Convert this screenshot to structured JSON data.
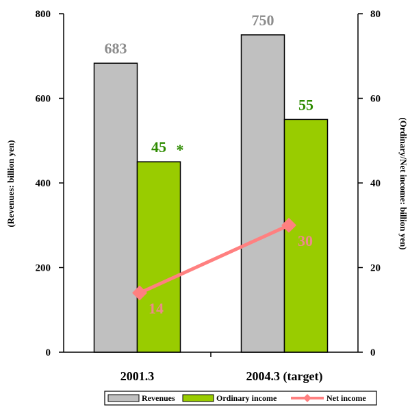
{
  "chart_data": {
    "type": "bar",
    "categories": [
      "2001.3",
      "2004.3 (target)"
    ],
    "series": [
      {
        "name": "Revenues",
        "axis": "left",
        "kind": "bar",
        "values": [
          683,
          750
        ],
        "labels": [
          "683",
          "750"
        ],
        "color": "#c0c0c0",
        "label_color": "#8c8c8c"
      },
      {
        "name": "Ordinary income",
        "axis": "right",
        "kind": "bar",
        "values": [
          45,
          55
        ],
        "labels": [
          "45",
          "55"
        ],
        "color": "#99cc00",
        "label_color": "#2e8b00"
      },
      {
        "name": "Net income",
        "axis": "right",
        "kind": "line",
        "values": [
          14,
          30
        ],
        "labels": [
          "14",
          "30"
        ],
        "color": "#ff8080",
        "label_color": "#ee8a8a"
      }
    ],
    "annotations": [
      "*"
    ],
    "ylabel": "(Revenues: billion yen)",
    "y2label": "(Ordinary/Net income: billion yen)",
    "ylim": [
      0,
      800
    ],
    "y2lim": [
      0,
      80
    ],
    "yticks": [
      "0",
      "200",
      "400",
      "600",
      "800"
    ],
    "y2ticks": [
      "0",
      "20",
      "40",
      "60",
      "80"
    ],
    "grid": false,
    "legend_position": "bottom"
  }
}
